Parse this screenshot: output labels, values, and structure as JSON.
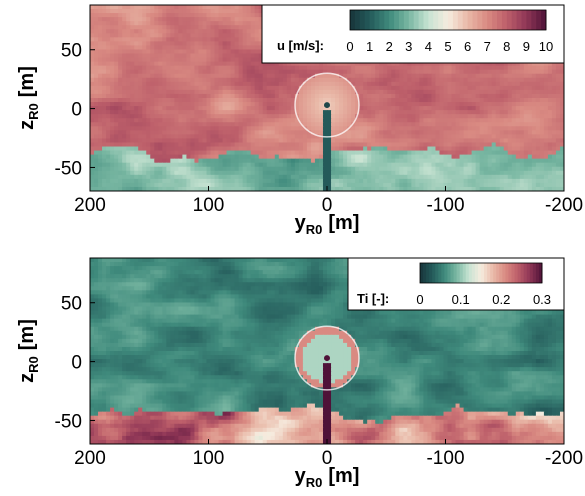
{
  "palette": {
    "stops": [
      "#17343a",
      "#245a5a",
      "#3f8a7c",
      "#7ab8a3",
      "#c7e3d2",
      "#f6ecdf",
      "#e9b9a8",
      "#d98a82",
      "#bd5f6a",
      "#8f3656",
      "#4f1238"
    ]
  },
  "chart_data": [
    {
      "type": "heatmap",
      "xlabel": "y",
      "xlabel_sub": "R0",
      "xlabel_unit": "[m]",
      "ylabel": "z",
      "ylabel_sub": "R0",
      "ylabel_unit": "[m]",
      "xlim": [
        200,
        -200
      ],
      "ylim": [
        -70,
        88
      ],
      "x_ticks": [
        "200",
        "100",
        "0",
        "-100",
        "-200"
      ],
      "x_tick_values": [
        200,
        100,
        0,
        -100,
        -200
      ],
      "y_ticks": [
        "50",
        "0",
        "-50"
      ],
      "y_tick_values": [
        50,
        0,
        -50
      ],
      "colorbar": {
        "label": "u [m/s]:",
        "tick_labels": [
          "0",
          "1",
          "2",
          "3",
          "4",
          "5",
          "6",
          "7",
          "8",
          "9",
          "10"
        ],
        "tick_values": [
          0,
          1,
          2,
          3,
          4,
          5,
          6,
          7,
          8,
          9,
          10
        ],
        "range": [
          0,
          10
        ],
        "levels": 11
      },
      "field": {
        "upper_mean": 7.6,
        "lower_mean": 3.0,
        "boundary_z": -38,
        "rotor_center": [
          0,
          3
        ],
        "rotor_radius": 27,
        "rotor_value": 6.2,
        "tower_value": 1.0
      }
    },
    {
      "type": "heatmap",
      "xlabel": "y",
      "xlabel_sub": "R0",
      "xlabel_unit": "[m]",
      "ylabel": "z",
      "ylabel_sub": "R0",
      "ylabel_unit": "[m]",
      "xlim": [
        200,
        -200
      ],
      "ylim": [
        -70,
        88
      ],
      "x_ticks": [
        "200",
        "100",
        "0",
        "-100",
        "-200"
      ],
      "x_tick_values": [
        200,
        100,
        0,
        -100,
        -200
      ],
      "y_ticks": [
        "50",
        "0",
        "-50"
      ],
      "y_tick_values": [
        50,
        0,
        -50
      ],
      "colorbar": {
        "label": "Ti [-]:",
        "tick_labels": [
          "0",
          "0.1",
          "0.2",
          "0.3"
        ],
        "tick_values": [
          0,
          0.1,
          0.2,
          0.3
        ],
        "range": [
          0,
          0.3
        ],
        "levels": 11
      },
      "field": {
        "upper_mean": 0.06,
        "lower_mean": 0.22,
        "boundary_z": -42,
        "rotor_center": [
          0,
          3
        ],
        "rotor_radius": 27,
        "rotor_value": 0.15,
        "tower_value": 0.3
      }
    }
  ]
}
